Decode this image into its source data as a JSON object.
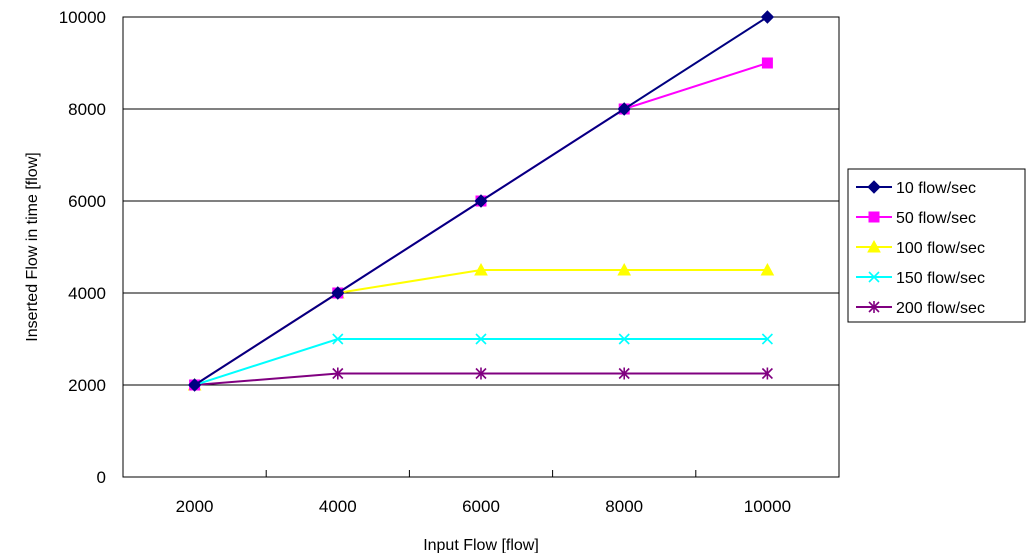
{
  "chart_data": {
    "type": "line",
    "title": "",
    "xlabel": "Input Flow [flow]",
    "ylabel": "Inserted Flow in time [flow]",
    "x": [
      2000,
      4000,
      6000,
      8000,
      10000
    ],
    "xticks": [
      "2000",
      "4000",
      "6000",
      "8000",
      "10000"
    ],
    "yticks": [
      "0",
      "2000",
      "4000",
      "6000",
      "8000",
      "10000"
    ],
    "ylim": [
      0,
      10000
    ],
    "grid": "horizontal",
    "legend_position": "right",
    "series": [
      {
        "name": "10 flow/sec",
        "color": "#000080",
        "marker": "diamond",
        "values": [
          2000,
          4000,
          6000,
          8000,
          10000
        ]
      },
      {
        "name": "50 flow/sec",
        "color": "#ff00ff",
        "marker": "square",
        "values": [
          2000,
          4000,
          6000,
          8000,
          9000
        ]
      },
      {
        "name": "100 flow/sec",
        "color": "#ffff00",
        "marker": "triangle",
        "values": [
          2000,
          4000,
          4500,
          4500,
          4500
        ]
      },
      {
        "name": "150 flow/sec",
        "color": "#00ffff",
        "marker": "x",
        "values": [
          2000,
          3000,
          3000,
          3000,
          3000
        ]
      },
      {
        "name": "200 flow/sec",
        "color": "#800080",
        "marker": "star",
        "values": [
          2000,
          2250,
          2250,
          2250,
          2250
        ]
      }
    ]
  }
}
